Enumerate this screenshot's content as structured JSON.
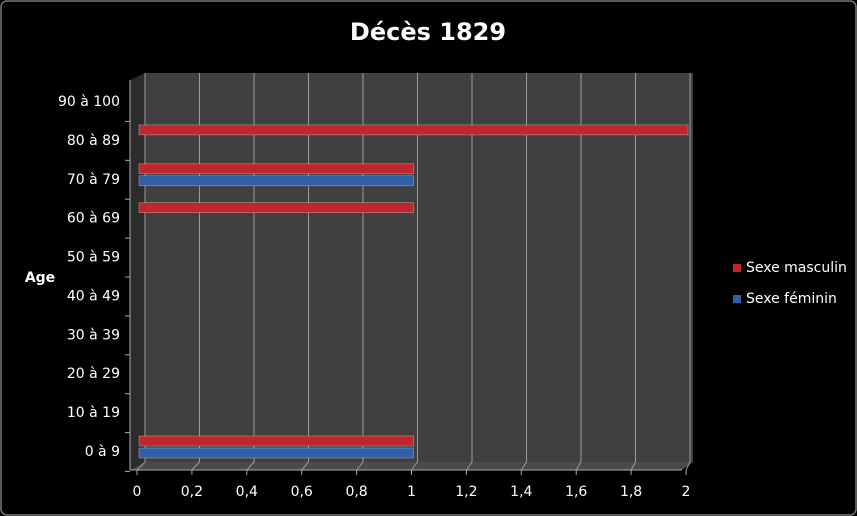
{
  "chart_data": {
    "type": "hbar",
    "title": "Décès 1829",
    "y_label": "Age",
    "categories": [
      "0 à 9",
      "10 à 19",
      "20 à 29",
      "30 à 39",
      "40 à 49",
      "50 à 59",
      "60 à 69",
      "70 à 79",
      "80 à 89",
      "90 à 100"
    ],
    "series": [
      {
        "name": "Sexe masculin",
        "color": "#c0272d",
        "values": [
          1,
          0,
          0,
          0,
          0,
          0,
          1,
          1,
          2,
          0
        ]
      },
      {
        "name": "Sexe féminin",
        "color": "#2e5fa8",
        "values": [
          1,
          0,
          0,
          0,
          0,
          0,
          0,
          1,
          0,
          0
        ]
      }
    ],
    "xlim": [
      0,
      2
    ],
    "xticks": [
      0,
      {
        "value": 0.2,
        "label": "0,2"
      },
      {
        "value": 0.4,
        "label": "0,4"
      },
      {
        "value": 0.6,
        "label": "0,6"
      },
      {
        "value": 0.8,
        "label": "0,8"
      },
      1,
      {
        "value": 1.2,
        "label": "1,2"
      },
      {
        "value": 1.4,
        "label": "1,4"
      },
      {
        "value": 1.6,
        "label": "1,6"
      },
      {
        "value": 1.8,
        "label": "1,8"
      },
      2
    ],
    "grid": true,
    "legend": "right"
  }
}
